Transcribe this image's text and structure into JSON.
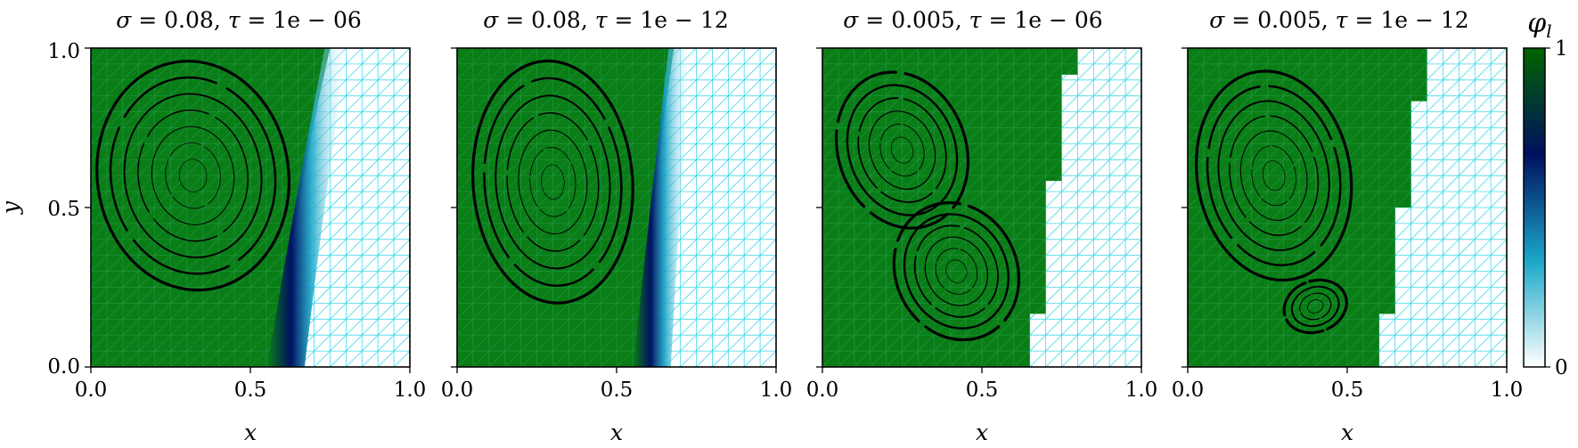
{
  "chart_data": [
    {
      "type": "heatmap",
      "title_parts": {
        "sigma": "0.08",
        "tau": "1e − 06"
      },
      "xlabel": "x",
      "ylabel": "y",
      "xlim": [
        0.0,
        1.0
      ],
      "ylim": [
        0.0,
        1.0
      ],
      "xticks": [
        "0.0",
        "0.5",
        "1.0"
      ],
      "yticks": [
        "0.0",
        "0.5",
        "1.0"
      ],
      "interface": {
        "top_x": 0.75,
        "bottom_x": 0.58,
        "style": "diffuse"
      },
      "vortices": [
        {
          "cx": 0.32,
          "cy": 0.6,
          "rx_max": 0.3,
          "ry_max": 0.36,
          "rings": 7,
          "tilt": -8
        }
      ]
    },
    {
      "type": "heatmap",
      "title_parts": {
        "sigma": "0.08",
        "tau": "1e − 12"
      },
      "xlabel": "x",
      "ylabel": "",
      "xlim": [
        0.0,
        1.0
      ],
      "ylim": [
        0.0,
        1.0
      ],
      "xticks": [
        "0.0",
        "0.5",
        "1.0"
      ],
      "yticks": [
        "",
        "",
        ""
      ],
      "interface": {
        "top_x": 0.68,
        "bottom_x": 0.58,
        "style": "diffuse"
      },
      "vortices": [
        {
          "cx": 0.3,
          "cy": 0.58,
          "rx_max": 0.25,
          "ry_max": 0.38,
          "rings": 7,
          "tilt": -4
        }
      ]
    },
    {
      "type": "heatmap",
      "title_parts": {
        "sigma": "0.005",
        "tau": "1e − 06"
      },
      "xlabel": "x",
      "ylabel": "",
      "xlim": [
        0.0,
        1.0
      ],
      "ylim": [
        0.0,
        1.0
      ],
      "xticks": [
        "0.0",
        "0.5",
        "1.0"
      ],
      "yticks": [
        "",
        "",
        ""
      ],
      "interface": {
        "top_x": 0.78,
        "bottom_x": 0.64,
        "style": "sharp"
      },
      "vortices": [
        {
          "cx": 0.25,
          "cy": 0.68,
          "rx_max": 0.2,
          "ry_max": 0.25,
          "rings": 6,
          "tilt": -20
        },
        {
          "cx": 0.42,
          "cy": 0.3,
          "rx_max": 0.19,
          "ry_max": 0.22,
          "rings": 6,
          "tilt": -25
        }
      ]
    },
    {
      "type": "heatmap",
      "title_parts": {
        "sigma": "0.005",
        "tau": "1e − 12"
      },
      "xlabel": "x",
      "ylabel": "",
      "xlim": [
        0.0,
        1.0
      ],
      "ylim": [
        0.0,
        1.0
      ],
      "xticks": [
        "0.0",
        "0.5",
        "1.0"
      ],
      "yticks": [
        "",
        "",
        ""
      ],
      "interface": {
        "top_x": 0.74,
        "bottom_x": 0.59,
        "style": "sharp"
      },
      "vortices": [
        {
          "cx": 0.27,
          "cy": 0.6,
          "rx_max": 0.24,
          "ry_max": 0.33,
          "rings": 7,
          "tilt": -10
        },
        {
          "cx": 0.4,
          "cy": 0.19,
          "rx_max": 0.1,
          "ry_max": 0.08,
          "rings": 4,
          "tilt": -20
        }
      ]
    }
  ],
  "colorbar": {
    "label_base": "φ",
    "label_sub": "l",
    "min_label": "0",
    "max_label": "1",
    "colors": [
      "#ffffff",
      "#1aa7c8",
      "#001060",
      "#006400"
    ]
  },
  "colors": {
    "liquid": "#0a7d16",
    "solid": "#ffffff",
    "mesh": "#40d8e8",
    "interface_dark": "#001060",
    "streamline": "#000000"
  }
}
